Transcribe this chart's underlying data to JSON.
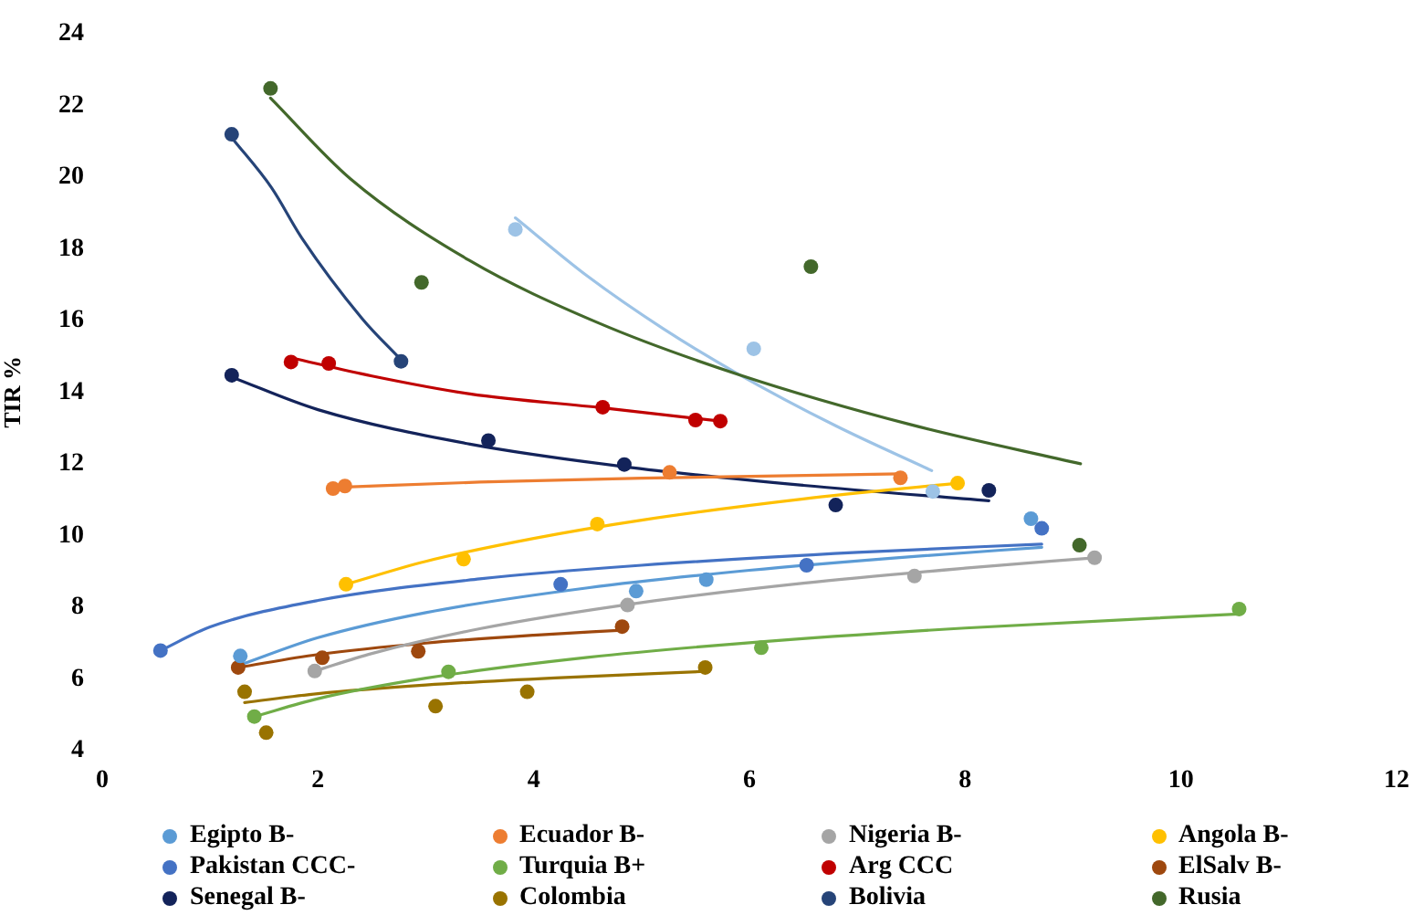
{
  "chart_data": {
    "type": "scatter",
    "ylabel": "TIR %",
    "xlim": [
      0,
      12
    ],
    "xticks": [
      0,
      2,
      4,
      6,
      8,
      10,
      12
    ],
    "ylim": [
      4,
      24
    ],
    "yticks": [
      4,
      6,
      8,
      10,
      12,
      14,
      16,
      18,
      20,
      22,
      24
    ],
    "marker": "circle",
    "legend": "bottom",
    "series": [
      {
        "name": "Egipto B-",
        "color": "#5b9bd5",
        "x": [
          1.28,
          4.95,
          5.6,
          8.61
        ],
        "values": [
          6.64,
          8.45,
          8.77,
          10.47
        ]
      },
      {
        "name": "Ecuador B-",
        "color": "#ed7d31",
        "x": [
          2.14,
          2.25,
          5.26,
          7.4
        ],
        "values": [
          11.31,
          11.38,
          11.76,
          11.61
        ]
      },
      {
        "name": "Nigeria B-",
        "color": "#a5a5a5",
        "x": [
          1.97,
          4.87,
          7.53,
          9.2
        ],
        "values": [
          6.22,
          8.06,
          8.87,
          9.38
        ]
      },
      {
        "name": "Angola B-",
        "color": "#ffc000",
        "x": [
          2.26,
          3.35,
          4.59,
          7.93
        ],
        "values": [
          8.64,
          9.34,
          10.32,
          11.46
        ]
      },
      {
        "name": "Pakistan CCC-",
        "color": "#4472c4",
        "x": [
          0.54,
          4.25,
          6.53,
          8.71
        ],
        "values": [
          6.79,
          8.64,
          9.17,
          10.2
        ]
      },
      {
        "name": "Turquia B+",
        "color": "#70ad47",
        "x": [
          1.41,
          3.21,
          6.11,
          10.54
        ],
        "values": [
          4.95,
          6.2,
          6.87,
          7.95
        ]
      },
      {
        "name": "Arg CCC",
        "color": "#c00000",
        "x": [
          1.75,
          2.1,
          4.64,
          5.5,
          5.73
        ],
        "values": [
          14.84,
          14.8,
          13.58,
          13.22,
          13.19
        ]
      },
      {
        "name": "ElSalv B-",
        "color": "#9e480e",
        "x": [
          1.26,
          2.04,
          2.93,
          4.82
        ],
        "values": [
          6.32,
          6.59,
          6.77,
          7.46
        ]
      },
      {
        "name": "Senegal B-",
        "color": "#13235a",
        "x": [
          1.2,
          3.58,
          4.84,
          6.8,
          8.22
        ],
        "values": [
          14.47,
          12.65,
          11.98,
          10.85,
          11.26
        ]
      },
      {
        "name": "Colombia",
        "color": "#997300",
        "x": [
          1.32,
          1.52,
          3.09,
          3.94,
          5.59
        ],
        "values": [
          5.64,
          4.5,
          5.24,
          5.64,
          6.32
        ]
      },
      {
        "name": "Bolivia",
        "color": "#264478",
        "x": [
          1.2,
          2.77
        ],
        "values": [
          21.19,
          14.86
        ]
      },
      {
        "name": "Rusia",
        "color": "#43682b",
        "x": [
          1.56,
          2.96,
          6.57,
          9.06
        ],
        "values": [
          22.47,
          17.06,
          17.5,
          9.73
        ]
      },
      {
        "color": "#9dc3e6",
        "x": [
          3.83,
          6.04,
          7.7
        ],
        "values": [
          18.54,
          15.21,
          11.23
        ]
      },
      {
        "type": "line",
        "marker": "none",
        "color": "#5b9bd5",
        "x": [
          1.28,
          2.0,
          3.0,
          4.5,
          6.0,
          7.5,
          8.71
        ],
        "values": [
          6.39,
          7.15,
          7.85,
          8.54,
          9.03,
          9.41,
          9.67
        ]
      },
      {
        "type": "line",
        "marker": "none",
        "color": "#ed7d31",
        "x": [
          2.14,
          3.5,
          5.0,
          7.4
        ],
        "values": [
          11.34,
          11.49,
          11.6,
          11.72
        ]
      },
      {
        "type": "line",
        "marker": "none",
        "color": "#a5a5a5",
        "x": [
          1.97,
          2.5,
          3.5,
          5.0,
          6.5,
          8.0,
          9.2
        ],
        "values": [
          6.22,
          6.71,
          7.4,
          8.13,
          8.67,
          9.09,
          9.38
        ]
      },
      {
        "type": "line",
        "marker": "none",
        "color": "#ffc000",
        "x": [
          2.26,
          3.0,
          4.0,
          5.0,
          6.5,
          7.93
        ],
        "values": [
          8.64,
          9.28,
          9.92,
          10.43,
          11.02,
          11.46
        ]
      },
      {
        "type": "line",
        "marker": "none",
        "color": "#4472c4",
        "x": [
          0.54,
          1.0,
          2.0,
          3.5,
          5.0,
          7.0,
          8.71
        ],
        "values": [
          6.79,
          7.45,
          8.19,
          8.79,
          9.17,
          9.53,
          9.76
        ]
      },
      {
        "type": "line",
        "marker": "none",
        "color": "#70ad47",
        "x": [
          1.41,
          2.0,
          3.0,
          4.5,
          6.0,
          8.0,
          10.54
        ],
        "values": [
          4.95,
          5.45,
          6.02,
          6.6,
          7.01,
          7.42,
          7.81
        ]
      },
      {
        "type": "line",
        "marker": "none",
        "color": "#c00000",
        "x": [
          1.75,
          2.5,
          3.41,
          4.64,
          5.73
        ],
        "values": [
          14.96,
          14.45,
          13.95,
          13.56,
          13.19
        ]
      },
      {
        "type": "line",
        "marker": "none",
        "color": "#9e480e",
        "x": [
          1.26,
          2.0,
          3.0,
          4.0,
          4.82
        ],
        "values": [
          6.32,
          6.68,
          7.0,
          7.22,
          7.36
        ]
      },
      {
        "type": "line",
        "marker": "none",
        "color": "#13235a",
        "x": [
          1.2,
          2.0,
          3.41,
          4.84,
          6.5,
          8.22
        ],
        "values": [
          14.42,
          13.51,
          12.55,
          11.92,
          11.4,
          10.97
        ]
      },
      {
        "type": "line",
        "marker": "none",
        "color": "#997300",
        "x": [
          1.32,
          2.0,
          3.0,
          4.2,
          5.59
        ],
        "values": [
          5.34,
          5.59,
          5.83,
          6.03,
          6.21
        ]
      },
      {
        "type": "line",
        "marker": "none",
        "color": "#264478",
        "x": [
          1.2,
          1.57,
          1.85,
          2.41,
          2.77
        ],
        "values": [
          21.1,
          19.7,
          18.3,
          16.05,
          14.9
        ]
      },
      {
        "type": "line",
        "marker": "none",
        "color": "#43682b",
        "x": [
          1.56,
          2.3,
          3.4,
          4.6,
          5.9,
          7.5,
          9.07
        ],
        "values": [
          22.2,
          19.95,
          17.68,
          15.93,
          14.49,
          13.09,
          12.0
        ]
      },
      {
        "type": "line",
        "marker": "none",
        "color": "#9dc3e6",
        "x": [
          3.83,
          4.5,
          5.2,
          5.87,
          6.8,
          7.69
        ],
        "values": [
          18.86,
          17.23,
          15.77,
          14.55,
          13.06,
          11.81
        ]
      }
    ]
  }
}
